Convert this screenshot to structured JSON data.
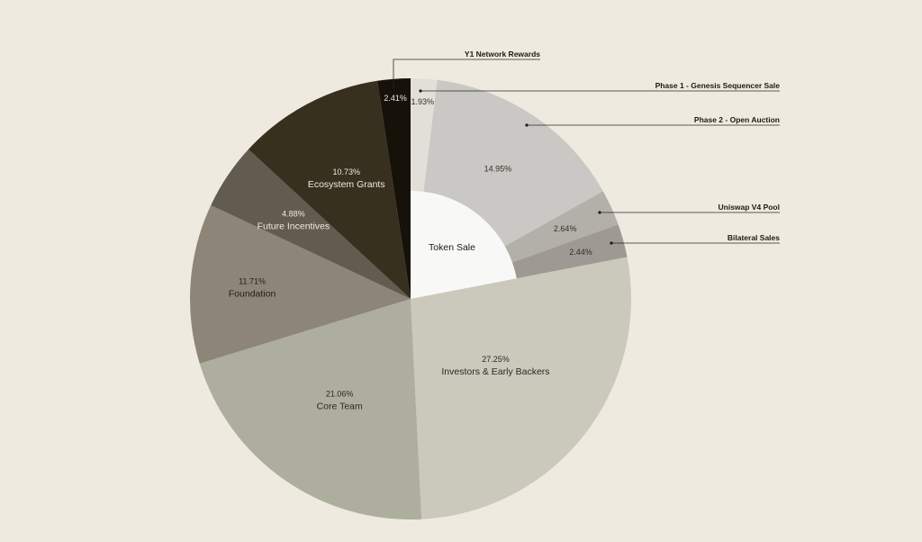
{
  "chart_data": {
    "type": "pie",
    "slices": [
      {
        "name": "Phase 1 - Genesis Sequencer Sale",
        "percent_label": "1.93%",
        "value": 1.93,
        "color": "#e2dfd8",
        "text_color": "#333029",
        "group": "Token Sale"
      },
      {
        "name": "Phase 2 - Open Auction",
        "percent_label": "14.95%",
        "value": 14.95,
        "color": "#c9c8c4",
        "text_color": "#333029",
        "group": "Token Sale"
      },
      {
        "name": "Uniswap V4 Pool",
        "percent_label": "2.64%",
        "value": 2.64,
        "color": "#b3b0a9",
        "text_color": "#333029",
        "group": "Token Sale"
      },
      {
        "name": "Bilateral Sales",
        "percent_label": "2.44%",
        "value": 2.44,
        "color": "#9e9a93",
        "text_color": "#333029",
        "group": "Token Sale"
      },
      {
        "name": "Investors & Early Backers",
        "percent_label": "27.25%",
        "value": 27.25,
        "color": "#cac9bc",
        "text_color": "#2b2a24"
      },
      {
        "name": "Core Team",
        "percent_label": "21.06%",
        "value": 21.06,
        "color": "#aeae9f",
        "text_color": "#2b2a24"
      },
      {
        "name": "Foundation",
        "percent_label": "11.71%",
        "value": 11.71,
        "color": "#8d8678",
        "text_color": "#1f1d18"
      },
      {
        "name": "Future Incentives",
        "percent_label": "4.88%",
        "value": 4.88,
        "color": "#625b4f",
        "text_color": "#efeae0"
      },
      {
        "name": "Ecosystem Grants",
        "percent_label": "10.73%",
        "value": 10.73,
        "color": "#38301f",
        "text_color": "#efeae0"
      },
      {
        "name": "Y1 Network Rewards",
        "percent_label": "2.41%",
        "value": 2.41,
        "color": "#16120a",
        "text_color": "#efeae0"
      }
    ],
    "inner_group": {
      "label": "Token Sale",
      "color": "#f8f8f7"
    },
    "inline_label_slices": [
      "Investors & Early Backers",
      "Core Team",
      "Foundation",
      "Future Incentives",
      "Ecosystem Grants"
    ],
    "callout_slices": [
      "Y1 Network Rewards",
      "Phase 1 - Genesis Sequencer Sale",
      "Phase 2 - Open Auction",
      "Uniswap V4 Pool",
      "Bilateral Sales"
    ],
    "start": "top",
    "direction": "clockwise"
  }
}
